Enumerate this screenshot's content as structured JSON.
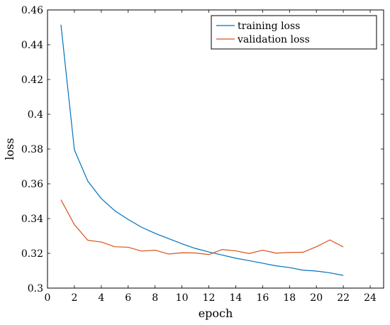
{
  "chart_data": {
    "type": "line",
    "xlabel": "epoch",
    "ylabel": "loss",
    "xlim": [
      0,
      25
    ],
    "ylim": [
      0.3,
      0.46
    ],
    "xticks": [
      0,
      2,
      4,
      6,
      8,
      10,
      12,
      14,
      16,
      18,
      20,
      22,
      24
    ],
    "yticks": [
      0.3,
      0.32,
      0.34,
      0.36,
      0.38,
      0.4,
      0.42,
      0.44,
      0.46
    ],
    "ytick_labels": [
      "0.3",
      "0.32",
      "0.34",
      "0.36",
      "0.38",
      "0.4",
      "0.42",
      "0.44",
      "0.46"
    ],
    "grid": false,
    "legend_position": "top-right",
    "x": [
      1,
      2,
      3,
      4,
      5,
      6,
      7,
      8,
      9,
      10,
      11,
      12,
      13,
      14,
      15,
      16,
      17,
      18,
      19,
      20,
      21,
      22
    ],
    "series": [
      {
        "name": "training loss",
        "color": "#0072BD",
        "values": [
          0.4515,
          0.3795,
          0.3615,
          0.3515,
          0.3445,
          0.3395,
          0.335,
          0.3315,
          0.3285,
          0.3255,
          0.3228,
          0.3208,
          0.319,
          0.3172,
          0.3158,
          0.3143,
          0.3128,
          0.3118,
          0.3103,
          0.3098,
          0.3088,
          0.3073
        ]
      },
      {
        "name": "validation loss",
        "color": "#D95319",
        "values": [
          0.3508,
          0.3365,
          0.3275,
          0.3265,
          0.3238,
          0.3235,
          0.3213,
          0.3218,
          0.3196,
          0.3203,
          0.3202,
          0.3193,
          0.3222,
          0.3214,
          0.3199,
          0.3218,
          0.3201,
          0.3205,
          0.3206,
          0.3238,
          0.3277,
          0.3237
        ]
      }
    ]
  }
}
